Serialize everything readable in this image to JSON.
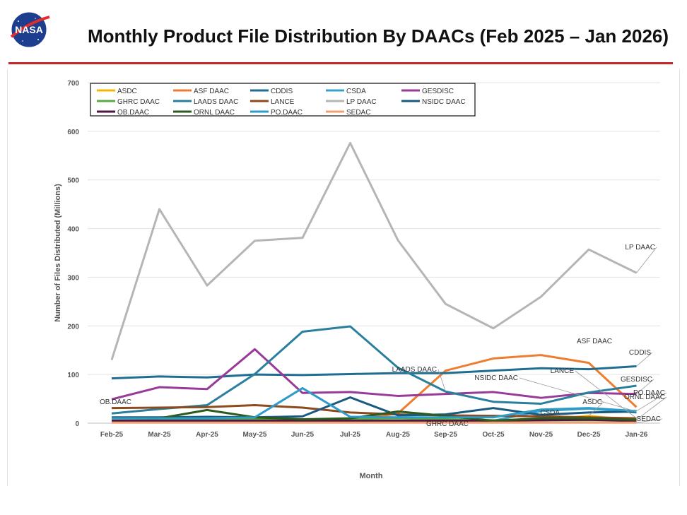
{
  "header": {
    "title": "Monthly Product File Distribution By DAACs (Feb 2025 – Jan 2026)",
    "logo_text": "NASA"
  },
  "chart_data": {
    "type": "line",
    "title": "Monthly Product File Distribution By DAACs (Feb 2025 – Jan 2026)",
    "xlabel": "Month",
    "ylabel": "Number of Files Distributed (Millions)",
    "ylim": [
      0,
      700
    ],
    "yticks": [
      "0",
      "100",
      "200",
      "300",
      "400",
      "500",
      "600",
      "700"
    ],
    "grid": "horizontal",
    "legend_position": "top-left",
    "categories": [
      "Feb-25",
      "Mar-25",
      "Apr-25",
      "May-25",
      "Jun-25",
      "Jul-25",
      "Aug-25",
      "Sep-25",
      "Oct-25",
      "Nov-25",
      "Dec-25",
      "Jan-26"
    ],
    "series": [
      {
        "name": "ASDC",
        "color": "#f2b705",
        "values": [
          2,
          3,
          5,
          3,
          2,
          2,
          3,
          3,
          4,
          6,
          15,
          5
        ]
      },
      {
        "name": "ASF DAAC",
        "color": "#ed7d31",
        "values": [
          3,
          3,
          3,
          5,
          5,
          6,
          20,
          108,
          133,
          140,
          124,
          33
        ]
      },
      {
        "name": "CDDIS",
        "color": "#1f6d91",
        "values": [
          92,
          96,
          94,
          100,
          99,
          101,
          103,
          103,
          108,
          113,
          111,
          117
        ]
      },
      {
        "name": "CSDA",
        "color": "#3aa1cc",
        "values": [
          2,
          2,
          2,
          3,
          2,
          3,
          3,
          4,
          5,
          25,
          30,
          22
        ]
      },
      {
        "name": "GESDISC",
        "color": "#983a98",
        "values": [
          49,
          74,
          70,
          152,
          62,
          64,
          56,
          60,
          64,
          52,
          62,
          60
        ]
      },
      {
        "name": "GHRC DAAC",
        "color": "#5aaa46",
        "values": [
          5,
          6,
          6,
          8,
          7,
          9,
          10,
          8,
          6,
          6,
          6,
          6
        ]
      },
      {
        "name": "LAADS DAAC",
        "color": "#2a7f9e",
        "values": [
          20,
          29,
          37,
          101,
          188,
          199,
          114,
          65,
          44,
          40,
          63,
          77
        ]
      },
      {
        "name": "LANCE",
        "color": "#8c4a1e",
        "values": [
          31,
          32,
          33,
          37,
          32,
          22,
          18,
          16,
          15,
          14,
          12,
          10
        ]
      },
      {
        "name": "LP DAAC",
        "color": "#b5b5b5",
        "values": [
          130,
          440,
          283,
          375,
          381,
          576,
          376,
          245,
          195,
          260,
          357,
          309
        ]
      },
      {
        "name": "NSIDC DAAC",
        "color": "#1a5a80",
        "values": [
          12,
          12,
          13,
          12,
          14,
          53,
          16,
          18,
          31,
          17,
          22,
          24
        ]
      },
      {
        "name": "OB.DAAC",
        "color": "#4d1740",
        "values": [
          5,
          5,
          5,
          5,
          5,
          5,
          5,
          5,
          5,
          6,
          7,
          4
        ]
      },
      {
        "name": "ORNL DAAC",
        "color": "#2d5a1e",
        "values": [
          10,
          10,
          27,
          12,
          8,
          10,
          24,
          15,
          5,
          10,
          10,
          7
        ]
      },
      {
        "name": "PO.DAAC",
        "color": "#2e9cc8",
        "values": [
          10,
          10,
          10,
          12,
          72,
          13,
          12,
          12,
          12,
          28,
          31,
          25
        ]
      },
      {
        "name": "SEDAC",
        "color": "#f0a276",
        "values": [
          1,
          1,
          1,
          1,
          1,
          1,
          1,
          1,
          1,
          1,
          1,
          1
        ]
      }
    ],
    "annotations": [
      "LP DAAC",
      "ASF DAAC",
      "CDDIS",
      "GESDISC",
      "PO.DAAC",
      "ORNL DAAC",
      "SEDAC",
      "ASDC",
      "LANCE",
      "NSIDC DAAC",
      "LAADS DAAC",
      "CSDA",
      "GHRC DAAC",
      "OB.DAAC"
    ]
  }
}
